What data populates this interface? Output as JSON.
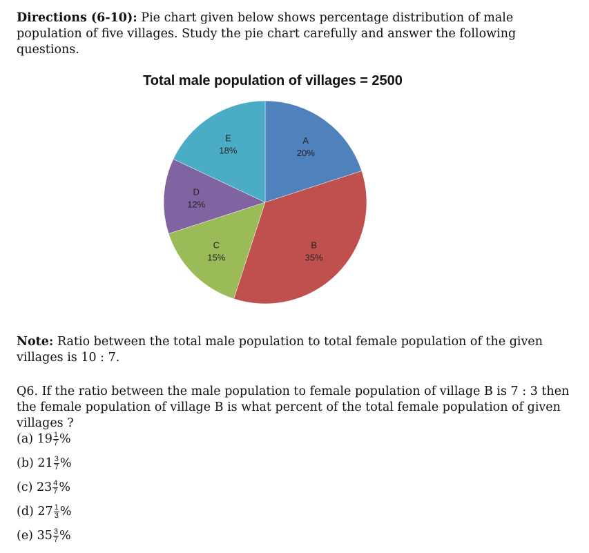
{
  "directions": {
    "lead": "Directions (6-10):",
    "text": "Pie chart given below shows percentage distribution of male population of five villages. Study the pie chart carefully and answer the following questions."
  },
  "chart_data": {
    "type": "pie",
    "title": "Total male population of villages = 2500",
    "slices": [
      {
        "label": "A",
        "value": 20,
        "value_label": "20%",
        "color": "#4F81BD"
      },
      {
        "label": "B",
        "value": 35,
        "value_label": "35%",
        "color": "#C0504D"
      },
      {
        "label": "C",
        "value": 15,
        "value_label": "15%",
        "color": "#9BBB59"
      },
      {
        "label": "D",
        "value": 12,
        "value_label": "12%",
        "color": "#8064A2"
      },
      {
        "label": "E",
        "value": 18,
        "value_label": "18%",
        "color": "#4BACC6"
      }
    ]
  },
  "note": {
    "lead": "Note:",
    "text": "Ratio between the total male population to total female population of the given villages is 10 : 7."
  },
  "question": {
    "text": "Q6. If the ratio between the male population to female population of village B is 7 : 3 then the female population of village B is what percent of the total female population of given villages ?",
    "options": [
      {
        "prefix": "(a) 19",
        "num": "1",
        "den": "7",
        "suffix": "%"
      },
      {
        "prefix": "(b) 21",
        "num": "3",
        "den": "7",
        "suffix": "%"
      },
      {
        "prefix": "(c) 23",
        "num": "4",
        "den": "7",
        "suffix": "%"
      },
      {
        "prefix": "(d) 27",
        "num": "1",
        "den": "3",
        "suffix": "%"
      },
      {
        "prefix": "(e) 35",
        "num": "3",
        "den": "7",
        "suffix": "%"
      }
    ]
  }
}
